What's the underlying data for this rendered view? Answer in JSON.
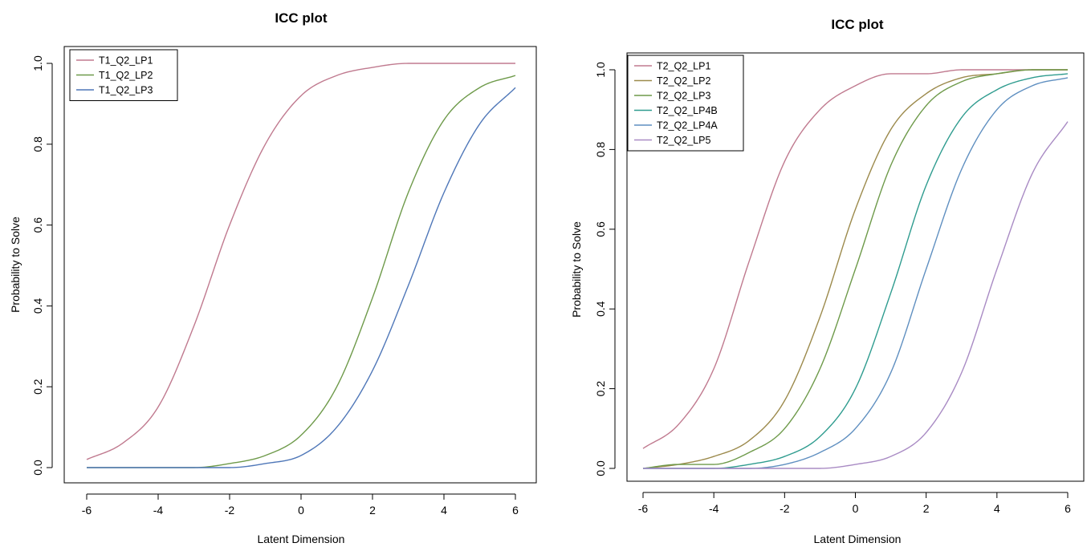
{
  "chart_data": [
    {
      "type": "line",
      "title": "ICC plot",
      "xlabel": "Latent Dimension",
      "ylabel": "Probability to Solve",
      "xlim": [
        -6,
        6
      ],
      "ylim": [
        0,
        1
      ],
      "x_ticks": [
        "-6",
        "-4",
        "-2",
        "0",
        "2",
        "4",
        "6"
      ],
      "y_ticks": [
        "0.0",
        "0.2",
        "0.4",
        "0.6",
        "0.8",
        "1.0"
      ],
      "grid": false,
      "legend_position": "top-left",
      "x": [
        -6,
        -5,
        -4,
        -3,
        -2,
        -1,
        0,
        1,
        2,
        3,
        4,
        5,
        6
      ],
      "series": [
        {
          "name": "T1_Q2_LP1",
          "color": "#c07a8f",
          "values": [
            0.02,
            0.06,
            0.15,
            0.35,
            0.6,
            0.8,
            0.92,
            0.97,
            0.99,
            1.0,
            1.0,
            1.0,
            1.0
          ]
        },
        {
          "name": "T1_Q2_LP2",
          "color": "#6e9a4a",
          "values": [
            0.0,
            0.0,
            0.0,
            0.0,
            0.01,
            0.03,
            0.08,
            0.2,
            0.42,
            0.68,
            0.86,
            0.94,
            0.97
          ]
        },
        {
          "name": "T1_Q2_LP3",
          "color": "#4f77b8",
          "values": [
            0.0,
            0.0,
            0.0,
            0.0,
            0.0,
            0.01,
            0.03,
            0.1,
            0.24,
            0.45,
            0.68,
            0.85,
            0.94
          ]
        }
      ]
    },
    {
      "type": "line",
      "title": "ICC plot",
      "xlabel": "Latent Dimension",
      "ylabel": "Probability to Solve",
      "xlim": [
        -6,
        6
      ],
      "ylim": [
        0,
        1
      ],
      "x_ticks": [
        "-6",
        "-4",
        "-2",
        "0",
        "2",
        "4",
        "6"
      ],
      "y_ticks": [
        "0.0",
        "0.2",
        "0.4",
        "0.6",
        "0.8",
        "1.0"
      ],
      "grid": false,
      "legend_position": "top-left",
      "x": [
        -6,
        -5,
        -4,
        -3,
        -2,
        -1,
        0,
        1,
        2,
        3,
        4,
        5,
        6
      ],
      "series": [
        {
          "name": "T2_Q2_LP1",
          "color": "#c07a8f",
          "values": [
            0.05,
            0.11,
            0.25,
            0.52,
            0.77,
            0.9,
            0.96,
            0.99,
            0.99,
            1.0,
            1.0,
            1.0,
            1.0
          ]
        },
        {
          "name": "T2_Q2_LP2",
          "color": "#9c8a4c",
          "values": [
            0.0,
            0.01,
            0.03,
            0.07,
            0.17,
            0.38,
            0.65,
            0.85,
            0.94,
            0.98,
            0.99,
            1.0,
            1.0
          ]
        },
        {
          "name": "T2_Q2_LP3",
          "color": "#6e9a4a",
          "values": [
            0.0,
            0.01,
            0.01,
            0.04,
            0.1,
            0.25,
            0.5,
            0.76,
            0.91,
            0.97,
            0.99,
            1.0,
            1.0
          ]
        },
        {
          "name": "T2_Q2_LP4B",
          "color": "#2f9c8f",
          "values": [
            0.0,
            0.0,
            0.0,
            0.01,
            0.03,
            0.08,
            0.2,
            0.44,
            0.71,
            0.88,
            0.95,
            0.98,
            0.99
          ]
        },
        {
          "name": "T2_Q2_LP4A",
          "color": "#5f8fc0",
          "values": [
            0.0,
            0.0,
            0.0,
            0.0,
            0.01,
            0.04,
            0.1,
            0.24,
            0.5,
            0.75,
            0.9,
            0.96,
            0.98
          ]
        },
        {
          "name": "T2_Q2_LP5",
          "color": "#a98bc4",
          "values": [
            0.0,
            0.0,
            0.0,
            0.0,
            0.0,
            0.0,
            0.01,
            0.03,
            0.09,
            0.24,
            0.5,
            0.74,
            0.87
          ]
        }
      ]
    }
  ]
}
